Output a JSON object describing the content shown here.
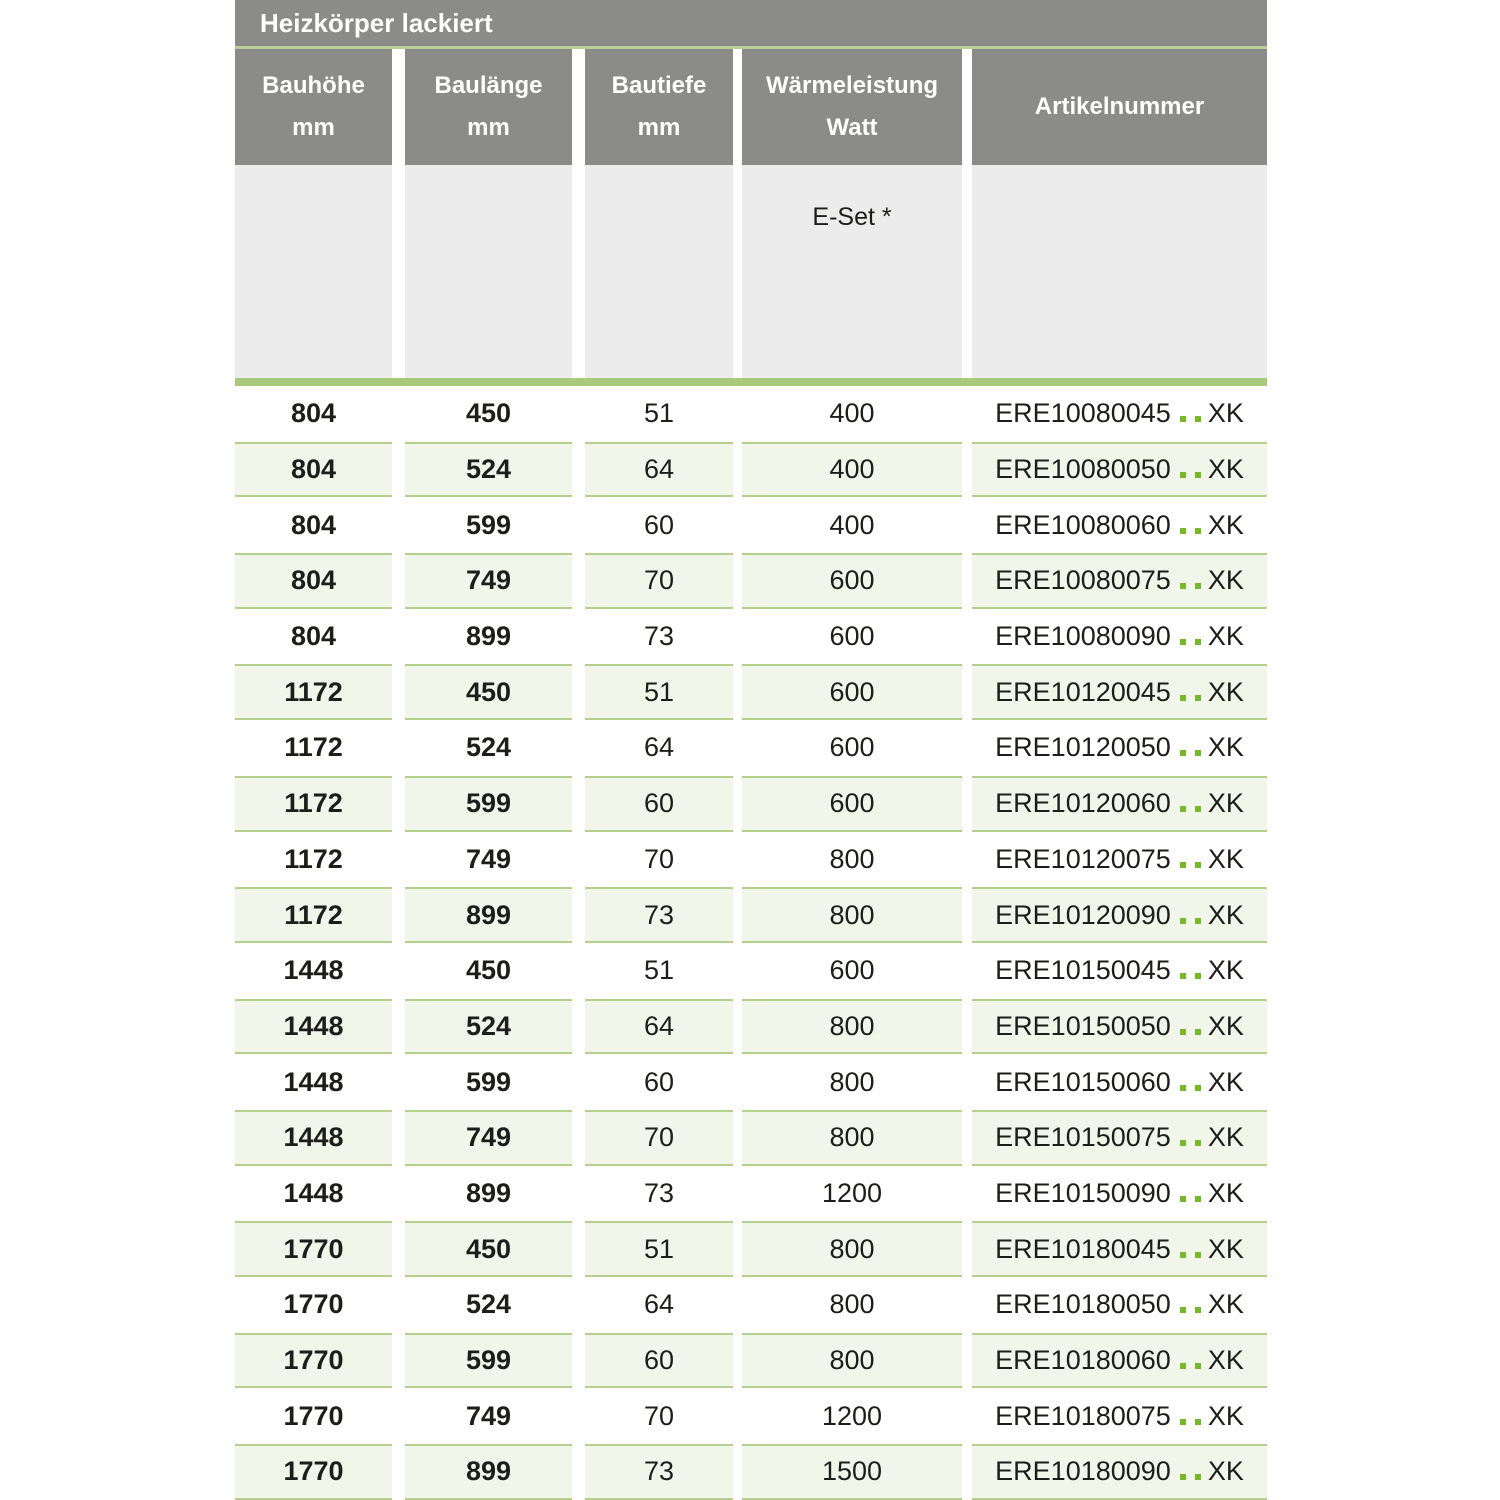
{
  "theme": {
    "page-bg": "#ffffff",
    "header-gray": "#8b8b89",
    "header-text": "#ffffff",
    "title-separator-green": "#b9cd96",
    "subheader-bg": "#ececec",
    "divider-green": "#a9ca7b",
    "row-alt-bg": "#f2f5ea",
    "row-alt-border": "#b5cf8d",
    "dot-green": "#76b82a",
    "text-dark": "#1d1d1b"
  },
  "table": {
    "title": "Heizkörper lackiert",
    "columns": [
      {
        "line1": "Bauhöhe",
        "line2": "mm"
      },
      {
        "line1": "Baulänge",
        "line2": "mm"
      },
      {
        "line1": "Bautiefe",
        "line2": "mm"
      },
      {
        "line1": "Wärmeleistung",
        "line2": "Watt"
      },
      {
        "line1": "Artikelnummer",
        "line2": ""
      }
    ],
    "subheader": {
      "eset_label": "E-Set *"
    },
    "artikel_placeholder_dots": 2,
    "rows": [
      {
        "bauhoehe": "804",
        "baulaenge": "450",
        "bautiefe": "51",
        "waermeleistung": "400",
        "artikel_prefix": "ERE10080045",
        "artikel_suffix": "XK"
      },
      {
        "bauhoehe": "804",
        "baulaenge": "524",
        "bautiefe": "64",
        "waermeleistung": "400",
        "artikel_prefix": "ERE10080050",
        "artikel_suffix": "XK"
      },
      {
        "bauhoehe": "804",
        "baulaenge": "599",
        "bautiefe": "60",
        "waermeleistung": "400",
        "artikel_prefix": "ERE10080060",
        "artikel_suffix": "XK"
      },
      {
        "bauhoehe": "804",
        "baulaenge": "749",
        "bautiefe": "70",
        "waermeleistung": "600",
        "artikel_prefix": "ERE10080075",
        "artikel_suffix": "XK"
      },
      {
        "bauhoehe": "804",
        "baulaenge": "899",
        "bautiefe": "73",
        "waermeleistung": "600",
        "artikel_prefix": "ERE10080090",
        "artikel_suffix": "XK"
      },
      {
        "bauhoehe": "1172",
        "baulaenge": "450",
        "bautiefe": "51",
        "waermeleistung": "600",
        "artikel_prefix": "ERE10120045",
        "artikel_suffix": "XK"
      },
      {
        "bauhoehe": "1172",
        "baulaenge": "524",
        "bautiefe": "64",
        "waermeleistung": "600",
        "artikel_prefix": "ERE10120050",
        "artikel_suffix": "XK"
      },
      {
        "bauhoehe": "1172",
        "baulaenge": "599",
        "bautiefe": "60",
        "waermeleistung": "600",
        "artikel_prefix": "ERE10120060",
        "artikel_suffix": "XK"
      },
      {
        "bauhoehe": "1172",
        "baulaenge": "749",
        "bautiefe": "70",
        "waermeleistung": "800",
        "artikel_prefix": "ERE10120075",
        "artikel_suffix": "XK"
      },
      {
        "bauhoehe": "1172",
        "baulaenge": "899",
        "bautiefe": "73",
        "waermeleistung": "800",
        "artikel_prefix": "ERE10120090",
        "artikel_suffix": "XK"
      },
      {
        "bauhoehe": "1448",
        "baulaenge": "450",
        "bautiefe": "51",
        "waermeleistung": "600",
        "artikel_prefix": "ERE10150045",
        "artikel_suffix": "XK"
      },
      {
        "bauhoehe": "1448",
        "baulaenge": "524",
        "bautiefe": "64",
        "waermeleistung": "800",
        "artikel_prefix": "ERE10150050",
        "artikel_suffix": "XK"
      },
      {
        "bauhoehe": "1448",
        "baulaenge": "599",
        "bautiefe": "60",
        "waermeleistung": "800",
        "artikel_prefix": "ERE10150060",
        "artikel_suffix": "XK"
      },
      {
        "bauhoehe": "1448",
        "baulaenge": "749",
        "bautiefe": "70",
        "waermeleistung": "800",
        "artikel_prefix": "ERE10150075",
        "artikel_suffix": "XK"
      },
      {
        "bauhoehe": "1448",
        "baulaenge": "899",
        "bautiefe": "73",
        "waermeleistung": "1200",
        "artikel_prefix": "ERE10150090",
        "artikel_suffix": "XK"
      },
      {
        "bauhoehe": "1770",
        "baulaenge": "450",
        "bautiefe": "51",
        "waermeleistung": "800",
        "artikel_prefix": "ERE10180045",
        "artikel_suffix": "XK"
      },
      {
        "bauhoehe": "1770",
        "baulaenge": "524",
        "bautiefe": "64",
        "waermeleistung": "800",
        "artikel_prefix": "ERE10180050",
        "artikel_suffix": "XK"
      },
      {
        "bauhoehe": "1770",
        "baulaenge": "599",
        "bautiefe": "60",
        "waermeleistung": "800",
        "artikel_prefix": "ERE10180060",
        "artikel_suffix": "XK"
      },
      {
        "bauhoehe": "1770",
        "baulaenge": "749",
        "bautiefe": "70",
        "waermeleistung": "1200",
        "artikel_prefix": "ERE10180075",
        "artikel_suffix": "XK"
      },
      {
        "bauhoehe": "1770",
        "baulaenge": "899",
        "bautiefe": "73",
        "waermeleistung": "1500",
        "artikel_prefix": "ERE10180090",
        "artikel_suffix": "XK"
      }
    ]
  }
}
